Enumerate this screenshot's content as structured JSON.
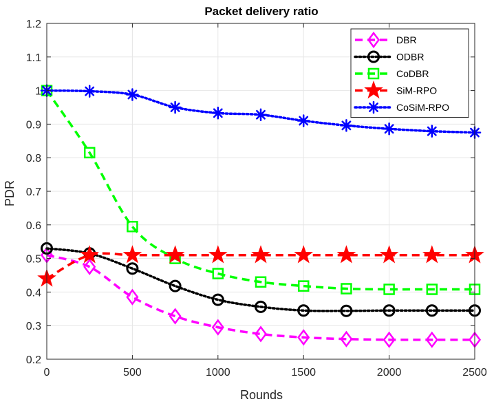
{
  "chart_data": {
    "type": "line",
    "title": "Packet delivery ratio",
    "xlabel": "Rounds",
    "ylabel": "PDR",
    "xlim": [
      0,
      2500
    ],
    "ylim": [
      0.2,
      1.2
    ],
    "x": [
      0,
      250,
      500,
      750,
      1000,
      1250,
      1500,
      1750,
      2000,
      2250,
      2500
    ],
    "xticks": [
      "0",
      "500",
      "1000",
      "1500",
      "2000",
      "2500"
    ],
    "yticks": [
      "0.2",
      "0.3",
      "0.4",
      "0.5",
      "0.6",
      "0.7",
      "0.8",
      "0.9",
      "1",
      "1.1",
      "1.2"
    ],
    "grid": true,
    "legend_position": "top-right",
    "series": [
      {
        "name": "DBR",
        "color": "#ff00ff",
        "line": "dashed",
        "marker": "diamond",
        "values": [
          0.51,
          0.475,
          0.385,
          0.328,
          0.295,
          0.275,
          0.265,
          0.26,
          0.258,
          0.258,
          0.258
        ]
      },
      {
        "name": "ODBR",
        "color": "#000000",
        "line": "dotted",
        "marker": "circle",
        "values": [
          0.53,
          0.515,
          0.47,
          0.418,
          0.377,
          0.356,
          0.345,
          0.344,
          0.345,
          0.345,
          0.345
        ]
      },
      {
        "name": "CoDBR",
        "color": "#00ff00",
        "line": "dashed",
        "marker": "square",
        "values": [
          1.0,
          0.815,
          0.595,
          0.5,
          0.455,
          0.43,
          0.418,
          0.41,
          0.408,
          0.408,
          0.408
        ]
      },
      {
        "name": "SiM-RPO",
        "color": "#ff0000",
        "line": "dashed",
        "marker": "star",
        "values": [
          0.44,
          0.51,
          0.51,
          0.51,
          0.51,
          0.51,
          0.51,
          0.51,
          0.51,
          0.51,
          0.51
        ]
      },
      {
        "name": "CoSiM-RPO",
        "color": "#0000ff",
        "line": "dotted",
        "marker": "asterisk",
        "values": [
          1.0,
          0.998,
          0.988,
          0.95,
          0.933,
          0.928,
          0.91,
          0.896,
          0.886,
          0.879,
          0.875
        ]
      }
    ]
  }
}
